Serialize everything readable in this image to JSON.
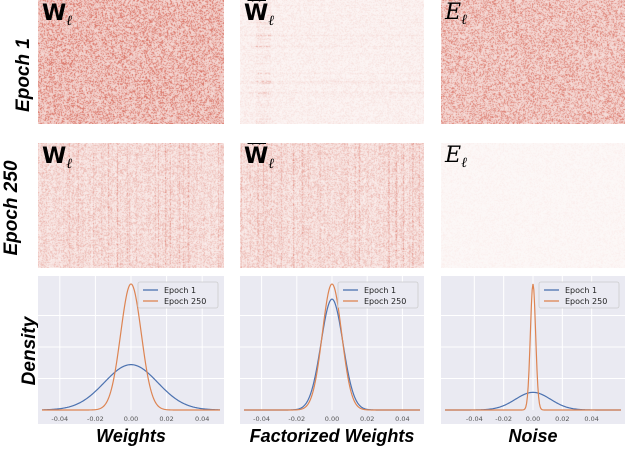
{
  "row_labels": {
    "epoch1": "Epoch 1",
    "epoch250": "Epoch 250",
    "density": "Density"
  },
  "col_labels": {
    "weights": "Weights",
    "factorized": "Factorized Weights",
    "noise": "Noise"
  },
  "matrix_labels": {
    "w_base": "W",
    "w_sub": "ℓ",
    "what_base": "W",
    "what_hat": "^",
    "what_sub": "ℓ",
    "e_base": "E",
    "e_sub": "ℓ"
  },
  "colors": {
    "epoch1": "#4c72b0",
    "epoch250": "#dd8452",
    "heat": "#c8321e",
    "plot_bg": "#eaeaf2"
  },
  "chart_data": [
    {
      "type": "line",
      "xlabel": "Weights",
      "ylabel": "Density",
      "xlim": [
        -0.05,
        0.05
      ],
      "xticks": [
        "-0.04",
        "-0.02",
        "0.00",
        "0.02",
        "0.04"
      ],
      "xtick_values": [
        -0.04,
        -0.02,
        0.0,
        0.02,
        0.04
      ],
      "legend": "top-right",
      "grid": true,
      "series": [
        {
          "name": "Epoch 1",
          "mean": 0.0,
          "std": 0.015,
          "peak": 0.36
        },
        {
          "name": "Epoch 250",
          "mean": 0.0,
          "std": 0.0058,
          "peak": 1.0
        }
      ]
    },
    {
      "type": "line",
      "xlabel": "Factorized Weights",
      "ylabel": "",
      "xlim": [
        -0.05,
        0.05
      ],
      "xticks": [
        "-0.04",
        "-0.02",
        "0.00",
        "0.02",
        "0.04"
      ],
      "xtick_values": [
        -0.04,
        -0.02,
        0.0,
        0.02,
        0.04
      ],
      "legend": "top-right",
      "grid": true,
      "series": [
        {
          "name": "Epoch 1",
          "mean": 0.0,
          "std": 0.0062,
          "peak": 0.88
        },
        {
          "name": "Epoch 250",
          "mean": 0.0,
          "std": 0.0055,
          "peak": 1.0
        }
      ]
    },
    {
      "type": "line",
      "xlabel": "Noise",
      "ylabel": "",
      "xlim": [
        -0.06,
        0.06
      ],
      "xticks": [
        "-0.04",
        "-0.02",
        "0.00",
        "0.02",
        "0.04"
      ],
      "xtick_values": [
        -0.04,
        -0.02,
        0.0,
        0.02,
        0.04
      ],
      "legend": "top-right",
      "grid": true,
      "series": [
        {
          "name": "Epoch 1",
          "mean": 0.0,
          "std": 0.012,
          "peak": 0.14
        },
        {
          "name": "Epoch 250",
          "mean": 0.0,
          "std": 0.0018,
          "peak": 1.0
        }
      ]
    }
  ]
}
